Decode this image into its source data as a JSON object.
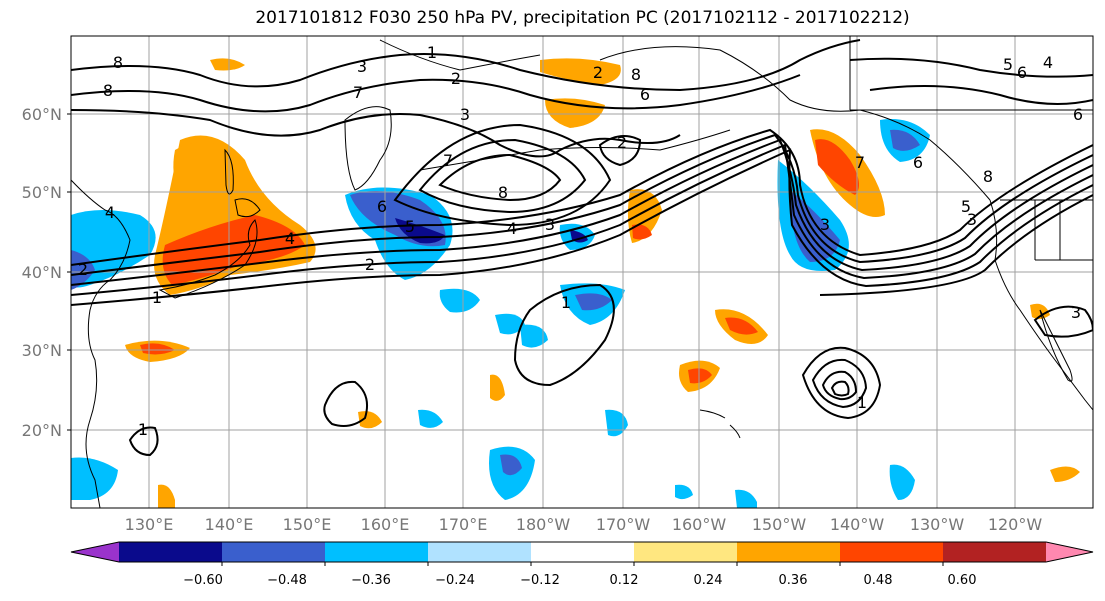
{
  "title": "2017101812 F030 250 hPa PV, precipitation PC (2017102112 - 2017102212)",
  "lat_labels": [
    "60°N",
    "50°N",
    "40°N",
    "30°N",
    "20°N"
  ],
  "lon_labels": [
    "130°E",
    "140°E",
    "150°E",
    "160°E",
    "170°E",
    "180°W",
    "170°W",
    "160°W",
    "150°W",
    "140°W",
    "130°W",
    "120°W"
  ],
  "colorbar": {
    "ticks": [
      "−0.60",
      "−0.48",
      "−0.36",
      "−0.24",
      "−0.12",
      "0.12",
      "0.24",
      "0.36",
      "0.48",
      "0.60"
    ],
    "colors": [
      "#9a33cc",
      "#0a0a8c",
      "#3a5fcd",
      "#00bfff",
      "#b0e2ff",
      "#ffffff",
      "#ffe780",
      "#ffa500",
      "#ff4500",
      "#b22222",
      "#ff88b0"
    ]
  },
  "contour_labels": [
    "8",
    "8",
    "1",
    "2",
    "3",
    "7",
    "3",
    "2",
    "8",
    "6",
    "4",
    "7",
    "4",
    "6",
    "5",
    "3",
    "2",
    "1",
    "4",
    "3",
    "2",
    "1",
    "1",
    "1",
    "3",
    "2",
    "7",
    "6",
    "5",
    "6",
    "6",
    "8",
    "4",
    "3",
    "8",
    "5"
  ]
}
